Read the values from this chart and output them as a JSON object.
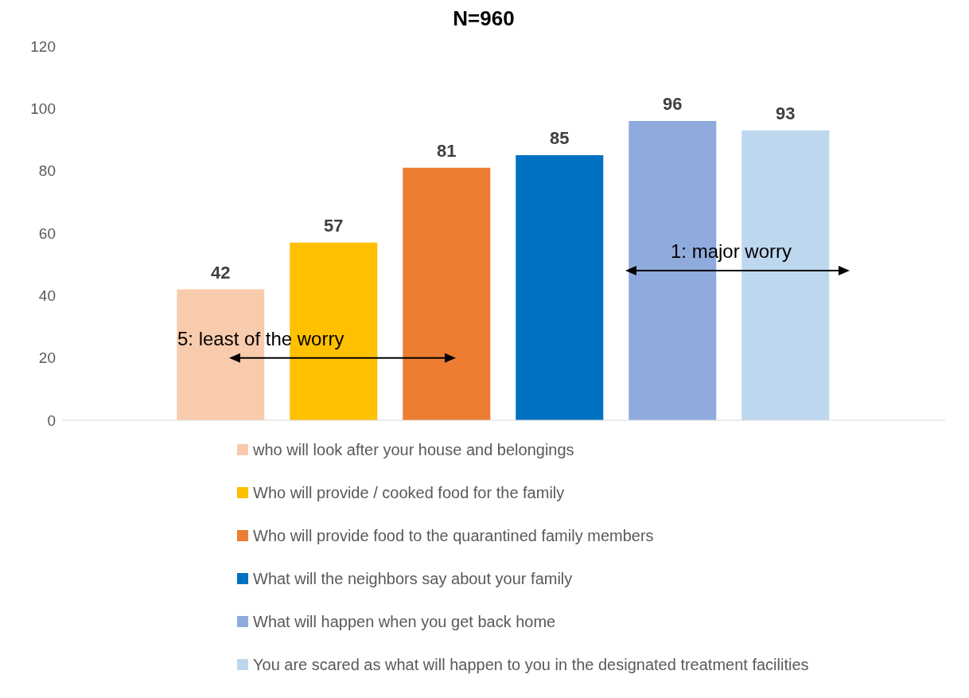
{
  "chart_data": {
    "type": "bar",
    "title": "N=960",
    "categories": [
      null
    ],
    "series": [
      {
        "name": "who will look after your house and belongings",
        "color": "#f8cbad",
        "values": [
          42
        ]
      },
      {
        "name": "Who will provide / cooked food for the family",
        "color": "#ffc000",
        "values": [
          57
        ]
      },
      {
        "name": "Who will provide food to the quarantined family members",
        "color": "#ed7d31",
        "values": [
          81
        ]
      },
      {
        "name": "What will the neighbors say about your family",
        "color": "#0070c0",
        "values": [
          85
        ]
      },
      {
        "name": "What will happen when you get back home",
        "color": "#8faadc",
        "values": [
          96
        ]
      },
      {
        "name": "You are scared as what will happen to you in the designated treatment facilities",
        "color": "#bdd7ee",
        "values": [
          93
        ]
      }
    ],
    "ylim": [
      0,
      120
    ],
    "yticks": [
      0,
      20,
      40,
      60,
      80,
      100,
      120
    ],
    "grid": false,
    "legend": "bottom",
    "data_labels": true,
    "annotations": [
      "5: least of the worry",
      "1: major worry"
    ]
  }
}
